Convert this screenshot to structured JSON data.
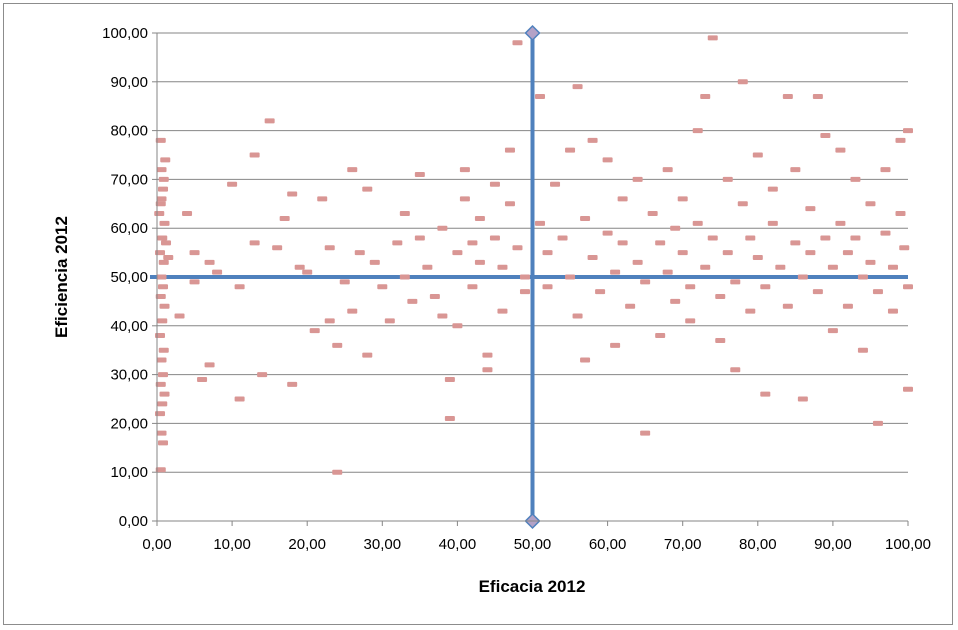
{
  "chart_data": {
    "type": "scatter",
    "xlabel": "Eficacia 2012",
    "ylabel": "Eficiencia 2012",
    "xlim": [
      0,
      100
    ],
    "ylim": [
      0,
      100
    ],
    "x_ticks": [
      "0,00",
      "10,00",
      "20,00",
      "30,00",
      "40,00",
      "50,00",
      "60,00",
      "70,00",
      "80,00",
      "90,00",
      "100,00"
    ],
    "y_ticks": [
      "0,00",
      "10,00",
      "20,00",
      "30,00",
      "40,00",
      "50,00",
      "60,00",
      "70,00",
      "80,00",
      "90,00",
      "100,00"
    ],
    "grid": "horizontal",
    "legend": "none",
    "marker_color": "#d99694",
    "reference_line_color": "#4f81bd",
    "reference_marker_color": "#b3a2c7",
    "reference_lines": {
      "horizontal": {
        "x": [
          0,
          100
        ],
        "y": [
          50,
          50
        ]
      },
      "vertical": {
        "x": [
          50,
          50
        ],
        "y": [
          0,
          100
        ]
      }
    },
    "series": [
      {
        "values": [
          [
            0.5,
            78
          ],
          [
            0.6,
            72
          ],
          [
            0.8,
            68
          ],
          [
            0.5,
            65
          ],
          [
            1.0,
            61
          ],
          [
            0.7,
            58
          ],
          [
            0.4,
            55
          ],
          [
            0.9,
            53
          ],
          [
            0.6,
            50
          ],
          [
            0.8,
            48
          ],
          [
            0.5,
            46
          ],
          [
            1.0,
            44
          ],
          [
            0.7,
            41
          ],
          [
            0.4,
            38
          ],
          [
            0.9,
            35
          ],
          [
            0.6,
            33
          ],
          [
            0.8,
            30
          ],
          [
            0.5,
            28
          ],
          [
            1.0,
            26
          ],
          [
            0.7,
            24
          ],
          [
            0.4,
            22
          ],
          [
            0.6,
            18
          ],
          [
            0.8,
            16
          ],
          [
            0.5,
            10.5
          ],
          [
            1.2,
            57
          ],
          [
            1.5,
            54
          ],
          [
            0.3,
            63
          ],
          [
            0.9,
            70
          ],
          [
            1.1,
            74
          ],
          [
            0.6,
            66
          ],
          [
            3,
            42
          ],
          [
            4,
            63
          ],
          [
            5,
            55
          ],
          [
            5,
            49
          ],
          [
            6,
            29
          ],
          [
            7,
            53
          ],
          [
            7,
            32
          ],
          [
            8,
            51
          ],
          [
            10,
            69
          ],
          [
            11,
            48
          ],
          [
            11,
            25
          ],
          [
            13,
            75
          ],
          [
            13,
            57
          ],
          [
            14,
            30
          ],
          [
            15,
            82
          ],
          [
            16,
            56
          ],
          [
            17,
            62
          ],
          [
            18,
            28
          ],
          [
            18,
            67
          ],
          [
            19,
            52
          ],
          [
            20,
            51
          ],
          [
            21,
            39
          ],
          [
            22,
            66
          ],
          [
            23,
            56
          ],
          [
            23,
            41
          ],
          [
            24,
            36
          ],
          [
            24,
            10
          ],
          [
            25,
            49
          ],
          [
            26,
            72
          ],
          [
            26,
            43
          ],
          [
            27,
            55
          ],
          [
            28,
            68
          ],
          [
            28,
            34
          ],
          [
            29,
            53
          ],
          [
            30,
            48
          ],
          [
            31,
            41
          ],
          [
            32,
            57
          ],
          [
            33,
            63
          ],
          [
            33,
            50
          ],
          [
            34,
            45
          ],
          [
            35,
            71
          ],
          [
            35,
            58
          ],
          [
            36,
            52
          ],
          [
            37,
            46
          ],
          [
            38,
            60
          ],
          [
            38,
            42
          ],
          [
            39,
            21
          ],
          [
            39,
            29
          ],
          [
            40,
            55
          ],
          [
            40,
            40
          ],
          [
            41,
            72
          ],
          [
            41,
            66
          ],
          [
            42,
            57
          ],
          [
            42,
            48
          ],
          [
            43,
            62
          ],
          [
            43,
            53
          ],
          [
            44,
            34
          ],
          [
            44,
            31
          ],
          [
            45,
            69
          ],
          [
            45,
            58
          ],
          [
            46,
            52
          ],
          [
            46,
            43
          ],
          [
            47,
            76
          ],
          [
            47,
            65
          ],
          [
            48,
            98
          ],
          [
            48,
            56
          ],
          [
            49,
            50
          ],
          [
            49,
            47
          ],
          [
            51,
            87
          ],
          [
            51,
            61
          ],
          [
            52,
            55
          ],
          [
            52,
            48
          ],
          [
            53,
            69
          ],
          [
            54,
            58
          ],
          [
            55,
            76
          ],
          [
            55,
            50
          ],
          [
            56,
            89
          ],
          [
            56,
            42
          ],
          [
            57,
            62
          ],
          [
            57,
            33
          ],
          [
            58,
            78
          ],
          [
            58,
            54
          ],
          [
            59,
            47
          ],
          [
            60,
            74
          ],
          [
            60,
            59
          ],
          [
            61,
            51
          ],
          [
            61,
            36
          ],
          [
            62,
            66
          ],
          [
            62,
            57
          ],
          [
            63,
            44
          ],
          [
            64,
            70
          ],
          [
            64,
            53
          ],
          [
            65,
            18
          ],
          [
            65,
            49
          ],
          [
            66,
            63
          ],
          [
            67,
            57
          ],
          [
            67,
            38
          ],
          [
            68,
            72
          ],
          [
            68,
            51
          ],
          [
            69,
            60
          ],
          [
            69,
            45
          ],
          [
            70,
            66
          ],
          [
            70,
            55
          ],
          [
            71,
            48
          ],
          [
            71,
            41
          ],
          [
            72,
            80
          ],
          [
            72,
            61
          ],
          [
            73,
            52
          ],
          [
            73,
            87
          ],
          [
            74,
            99
          ],
          [
            74,
            58
          ],
          [
            75,
            46
          ],
          [
            75,
            37
          ],
          [
            76,
            70
          ],
          [
            76,
            55
          ],
          [
            77,
            49
          ],
          [
            77,
            31
          ],
          [
            78,
            90
          ],
          [
            78,
            65
          ],
          [
            79,
            58
          ],
          [
            79,
            43
          ],
          [
            80,
            75
          ],
          [
            80,
            54
          ],
          [
            81,
            48
          ],
          [
            81,
            26
          ],
          [
            82,
            68
          ],
          [
            82,
            61
          ],
          [
            83,
            52
          ],
          [
            84,
            87
          ],
          [
            84,
            44
          ],
          [
            85,
            72
          ],
          [
            85,
            57
          ],
          [
            86,
            50
          ],
          [
            86,
            25
          ],
          [
            87,
            64
          ],
          [
            87,
            55
          ],
          [
            88,
            87
          ],
          [
            88,
            47
          ],
          [
            89,
            79
          ],
          [
            89,
            58
          ],
          [
            90,
            52
          ],
          [
            90,
            39
          ],
          [
            91,
            76
          ],
          [
            91,
            61
          ],
          [
            92,
            55
          ],
          [
            92,
            44
          ],
          [
            93,
            70
          ],
          [
            93,
            58
          ],
          [
            94,
            50
          ],
          [
            94,
            35
          ],
          [
            95,
            65
          ],
          [
            95,
            53
          ],
          [
            96,
            47
          ],
          [
            96,
            20
          ],
          [
            97,
            72
          ],
          [
            97,
            59
          ],
          [
            98,
            52
          ],
          [
            98,
            43
          ],
          [
            99,
            78
          ],
          [
            99,
            63
          ],
          [
            99.5,
            56
          ],
          [
            100,
            80
          ],
          [
            100,
            48
          ],
          [
            100,
            27
          ]
        ]
      }
    ]
  }
}
